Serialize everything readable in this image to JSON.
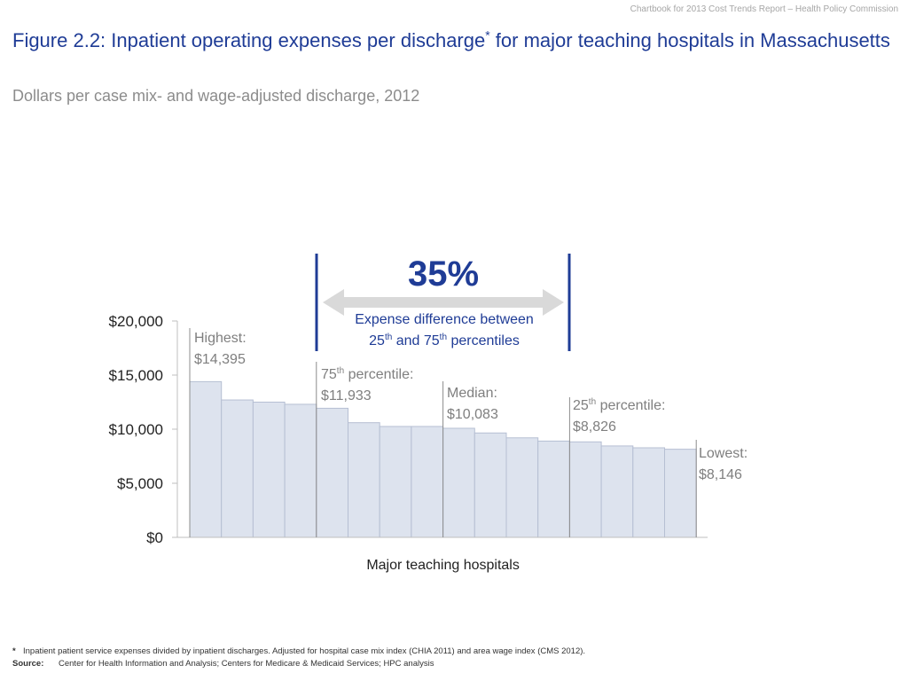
{
  "header_note": "Chartbook for 2013 Cost Trends Report – Health Policy Commission",
  "title": {
    "part1": "Figure 2.2: Inpatient operating expenses per discharge",
    "marker": "*",
    "part2": " for major teaching hospitals in Massachusetts"
  },
  "subtitle": "Dollars per case mix- and wage-adjusted discharge, 2012",
  "chart_data": {
    "type": "bar",
    "xlabel": "Major teaching hospitals",
    "ylim": [
      0,
      20000
    ],
    "yticks": [
      {
        "value": 0,
        "label": "$0"
      },
      {
        "value": 5000,
        "label": "$5,000"
      },
      {
        "value": 10000,
        "label": "$10,000"
      },
      {
        "value": 15000,
        "label": "$15,000"
      },
      {
        "value": 20000,
        "label": "$20,000"
      }
    ],
    "values": [
      14395,
      12700,
      12500,
      12300,
      11933,
      10600,
      10250,
      10250,
      10083,
      9650,
      9200,
      8900,
      8826,
      8450,
      8280,
      8146
    ],
    "annotations": [
      {
        "index": 0,
        "line1": "Highest:",
        "line2": "$14,395"
      },
      {
        "index": 4,
        "line1_pre": "75",
        "line1_sup": "th",
        "line1_post": " percentile:",
        "line2": "$11,933"
      },
      {
        "index": 8,
        "line1": "Median:",
        "line2": "$10,083"
      },
      {
        "index": 12,
        "line1_pre": "25",
        "line1_sup": "th",
        "line1_post": " percentile:",
        "line2": "$8,826"
      },
      {
        "index": 15,
        "line1": "Lowest:",
        "line2": "$8,146"
      }
    ],
    "callout": {
      "percent": "35%",
      "line1": "Expense difference between",
      "line2_a": "25",
      "line2_sup1": "th",
      "line2_b": " and 75",
      "line2_sup2": "th",
      "line2_c": " percentiles"
    },
    "colors": {
      "bar_fill": "#dde3ee",
      "bar_stroke": "#b6bfd3",
      "accent": "#1f3c96",
      "arrow": "#d9d9d9"
    }
  },
  "footnotes": {
    "star": "*",
    "note": "Inpatient patient service expenses divided by inpatient discharges. Adjusted for hospital case mix index (CHIA 2011) and area wage index (CMS 2012).",
    "source_label": "Source:",
    "source_text": "Center for Health Information and Analysis; Centers for Medicare & Medicaid Services; HPC analysis"
  }
}
